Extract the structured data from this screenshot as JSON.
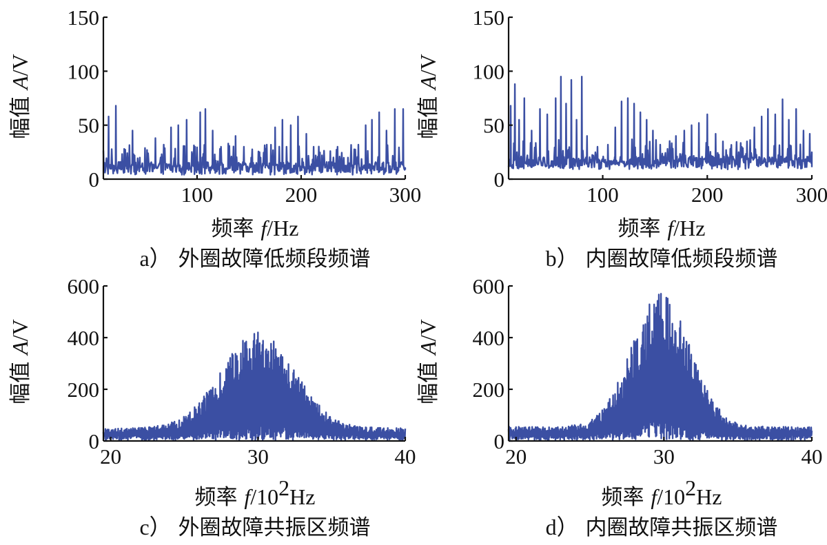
{
  "figure": {
    "ylabel_prefix": "幅值",
    "ylabel_var": "A",
    "ylabel_unit": "/V",
    "xlabel_prefix": "频率",
    "xlabel_var": "f",
    "xlabel_unit_low": "/Hz",
    "xlabel_unit_high_a": "/10",
    "xlabel_unit_high_sup": "2",
    "xlabel_unit_high_b": "Hz",
    "line_color": "#3b4fa3"
  },
  "chart_data": [
    {
      "id": "a",
      "type": "line",
      "caption_letter": "a）",
      "caption_text": "外圈故障低频段频谱",
      "xlim": [
        10,
        300
      ],
      "ylim": [
        0,
        150
      ],
      "xticks": [
        100,
        200,
        300
      ],
      "yticks": [
        0,
        50,
        100,
        150
      ],
      "baseline": 10,
      "peaks": [
        [
          15,
          58
        ],
        [
          22,
          68
        ],
        [
          30,
          28
        ],
        [
          38,
          45
        ],
        [
          45,
          20
        ],
        [
          52,
          27
        ],
        [
          60,
          38
        ],
        [
          68,
          32
        ],
        [
          75,
          48
        ],
        [
          82,
          50
        ],
        [
          90,
          55
        ],
        [
          98,
          30
        ],
        [
          103,
          62
        ],
        [
          108,
          65
        ],
        [
          115,
          45
        ],
        [
          122,
          28
        ],
        [
          130,
          33
        ],
        [
          137,
          40
        ],
        [
          145,
          30
        ],
        [
          152,
          20
        ],
        [
          160,
          25
        ],
        [
          167,
          32
        ],
        [
          175,
          48
        ],
        [
          182,
          55
        ],
        [
          190,
          50
        ],
        [
          197,
          58
        ],
        [
          205,
          42
        ],
        [
          212,
          30
        ],
        [
          220,
          22
        ],
        [
          228,
          26
        ],
        [
          235,
          30
        ],
        [
          245,
          20
        ],
        [
          255,
          32
        ],
        [
          262,
          50
        ],
        [
          268,
          55
        ],
        [
          275,
          62
        ],
        [
          282,
          45
        ],
        [
          290,
          65
        ],
        [
          298,
          65
        ]
      ]
    },
    {
      "id": "b",
      "type": "line",
      "caption_letter": "b）",
      "caption_text": "内圈故障低频段频谱",
      "xlim": [
        10,
        300
      ],
      "ylim": [
        0,
        150
      ],
      "xticks": [
        100,
        200,
        300
      ],
      "yticks": [
        0,
        50,
        100,
        150
      ],
      "baseline": 15,
      "peaks": [
        [
          12,
          68
        ],
        [
          16,
          88
        ],
        [
          20,
          55
        ],
        [
          25,
          75
        ],
        [
          32,
          45
        ],
        [
          40,
          65
        ],
        [
          47,
          60
        ],
        [
          55,
          75
        ],
        [
          60,
          95
        ],
        [
          65,
          70
        ],
        [
          70,
          92
        ],
        [
          75,
          55
        ],
        [
          80,
          95
        ],
        [
          85,
          40
        ],
        [
          95,
          30
        ],
        [
          105,
          32
        ],
        [
          112,
          48
        ],
        [
          118,
          72
        ],
        [
          124,
          75
        ],
        [
          130,
          70
        ],
        [
          136,
          62
        ],
        [
          142,
          55
        ],
        [
          148,
          45
        ],
        [
          155,
          32
        ],
        [
          162,
          28
        ],
        [
          170,
          40
        ],
        [
          178,
          45
        ],
        [
          185,
          50
        ],
        [
          192,
          52
        ],
        [
          200,
          60
        ],
        [
          208,
          42
        ],
        [
          215,
          35
        ],
        [
          222,
          28
        ],
        [
          230,
          25
        ],
        [
          238,
          35
        ],
        [
          245,
          48
        ],
        [
          252,
          58
        ],
        [
          258,
          65
        ],
        [
          265,
          60
        ],
        [
          272,
          74
        ],
        [
          278,
          55
        ],
        [
          285,
          65
        ],
        [
          292,
          45
        ],
        [
          298,
          42
        ]
      ]
    },
    {
      "id": "c",
      "type": "line",
      "caption_letter": "c）",
      "caption_text": "外圈故障共振区频谱",
      "xlim": [
        19.5,
        40
      ],
      "ylim": [
        0,
        600
      ],
      "xticks": [
        20,
        30,
        40
      ],
      "yticks": [
        0,
        200,
        400,
        600
      ],
      "center": 30,
      "peak_value": 420,
      "width": 3.5,
      "floor": 50,
      "dip_at": 29.5
    },
    {
      "id": "d",
      "type": "line",
      "caption_letter": "d）",
      "caption_text": "内圈故障共振区频谱",
      "xlim": [
        19.5,
        40
      ],
      "ylim": [
        0,
        600
      ],
      "xticks": [
        20,
        30,
        40
      ],
      "yticks": [
        0,
        200,
        400,
        600
      ],
      "center": 29.8,
      "peak_value": 570,
      "width": 2.8,
      "floor": 55,
      "dip_at": 30.2
    }
  ]
}
